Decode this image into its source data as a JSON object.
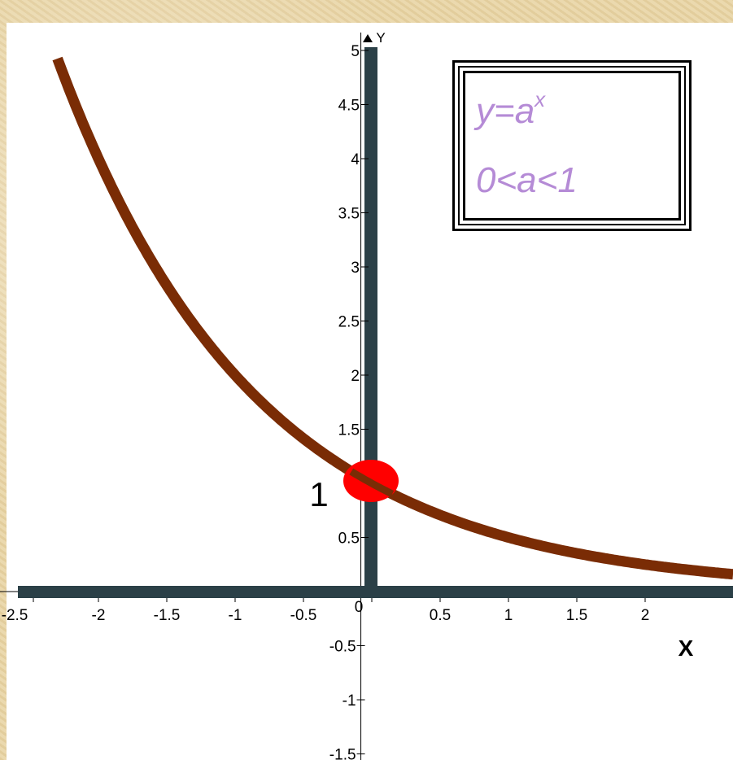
{
  "chart_data": {
    "type": "line",
    "function": "y = 0.5^x",
    "base_a": 0.5,
    "series": [
      {
        "x": [
          -2.3,
          -2.0,
          -1.5,
          -1.0,
          -0.5,
          0.0,
          0.5,
          1.0,
          1.5,
          2.0,
          2.5
        ],
        "y": [
          4.92,
          4.0,
          2.83,
          2.0,
          1.41,
          1.0,
          0.71,
          0.5,
          0.35,
          0.25,
          0.18
        ],
        "color": "#7a2c05"
      }
    ],
    "xlim": [
      -2.5,
      2.55
    ],
    "ylim": [
      -1.6,
      5.1
    ],
    "x_ticks": [
      "-2.5",
      "-2",
      "-1.5",
      "-1",
      "-0.5",
      "0",
      "0.5",
      "1",
      "1.5",
      "2"
    ],
    "x_tick_values": [
      -2.5,
      -2,
      -1.5,
      -1,
      -0.5,
      0,
      0.5,
      1,
      1.5,
      2
    ],
    "y_ticks": [
      "-1.5",
      "-1",
      "-0.5",
      "0.5",
      "1",
      "1.5",
      "2",
      "2.5",
      "3",
      "3.5",
      "4",
      "4.5",
      "5"
    ],
    "y_tick_values": [
      -1.5,
      -1,
      -0.5,
      0.5,
      1,
      1.5,
      2,
      2.5,
      3,
      3.5,
      4,
      4.5,
      5
    ],
    "xlabel": "X",
    "ylabel": "Y",
    "highlight_point": {
      "x": 0,
      "y": 1,
      "label": "1",
      "color": "#ff0000"
    },
    "grid": false,
    "colors": {
      "axis_bar": "#2b4047",
      "curve": "#7a2c05",
      "highlight": "#ff0000",
      "formula_text": "#b58bd6"
    }
  },
  "legend_box": {
    "line1_base": "y=a",
    "line1_exponent": "x",
    "line2": "0<a<1"
  }
}
